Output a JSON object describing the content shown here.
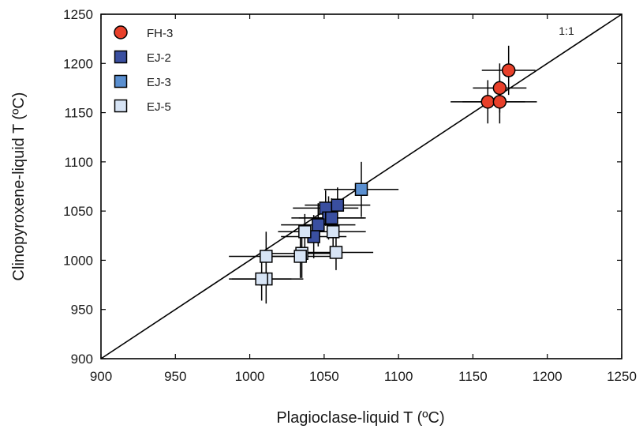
{
  "chart_data": {
    "type": "scatter",
    "xlabel": "Plagioclase-liquid T (ºC)",
    "ylabel": "Clinopyroxene-liquid T (ºC)",
    "xlim": [
      900,
      1250
    ],
    "ylim": [
      900,
      1250
    ],
    "xticks": [
      900,
      950,
      1000,
      1050,
      1100,
      1150,
      1200,
      1250
    ],
    "yticks": [
      900,
      950,
      1000,
      1050,
      1100,
      1150,
      1200,
      1250
    ],
    "grid": false,
    "legend_position": "top-left",
    "reference_line": {
      "label": "1:1",
      "from": [
        900,
        900
      ],
      "to": [
        1250,
        1250
      ]
    },
    "series": [
      {
        "name": "FH-3",
        "marker": "circle",
        "color": "#e8402a",
        "points": [
          {
            "x": 1174,
            "y": 1193,
            "xerr": 18,
            "yerr": 25
          },
          {
            "x": 1168,
            "y": 1175,
            "xerr": 18,
            "yerr": 25
          },
          {
            "x": 1160,
            "y": 1161,
            "xerr": 25,
            "yerr": 22
          },
          {
            "x": 1168,
            "y": 1161,
            "xerr": 25,
            "yerr": 22
          }
        ]
      },
      {
        "name": "EJ-2",
        "marker": "square",
        "color": "#3a4fa0",
        "points": [
          {
            "x": 1051,
            "y": 1053,
            "xerr": 22,
            "yerr": 18
          },
          {
            "x": 1059,
            "y": 1056,
            "xerr": 22,
            "yerr": 18
          },
          {
            "x": 1053,
            "y": 1043,
            "xerr": 25,
            "yerr": 22
          },
          {
            "x": 1046,
            "y": 1036,
            "xerr": 25,
            "yerr": 22
          },
          {
            "x": 1043,
            "y": 1024,
            "xerr": 22,
            "yerr": 22
          },
          {
            "x": 1055,
            "y": 1043,
            "xerr": 22,
            "yerr": 20
          }
        ]
      },
      {
        "name": "EJ-3",
        "marker": "square",
        "color": "#5a8fd0",
        "points": [
          {
            "x": 1075,
            "y": 1072,
            "xerr": 25,
            "yerr": 28
          }
        ]
      },
      {
        "name": "EJ-5",
        "marker": "square",
        "color": "#d7e4f5",
        "points": [
          {
            "x": 1037,
            "y": 1029,
            "xerr": 18,
            "yerr": 18
          },
          {
            "x": 1056,
            "y": 1029,
            "xerr": 22,
            "yerr": 25
          },
          {
            "x": 1035,
            "y": 1007,
            "xerr": 25,
            "yerr": 25
          },
          {
            "x": 1034,
            "y": 1004,
            "xerr": 25,
            "yerr": 22
          },
          {
            "x": 1011,
            "y": 1004,
            "xerr": 25,
            "yerr": 25
          },
          {
            "x": 1058,
            "y": 1008,
            "xerr": 25,
            "yerr": 18
          },
          {
            "x": 1011,
            "y": 981,
            "xerr": 25,
            "yerr": 25
          },
          {
            "x": 1008,
            "y": 981,
            "xerr": 20,
            "yerr": 22
          }
        ]
      }
    ]
  }
}
